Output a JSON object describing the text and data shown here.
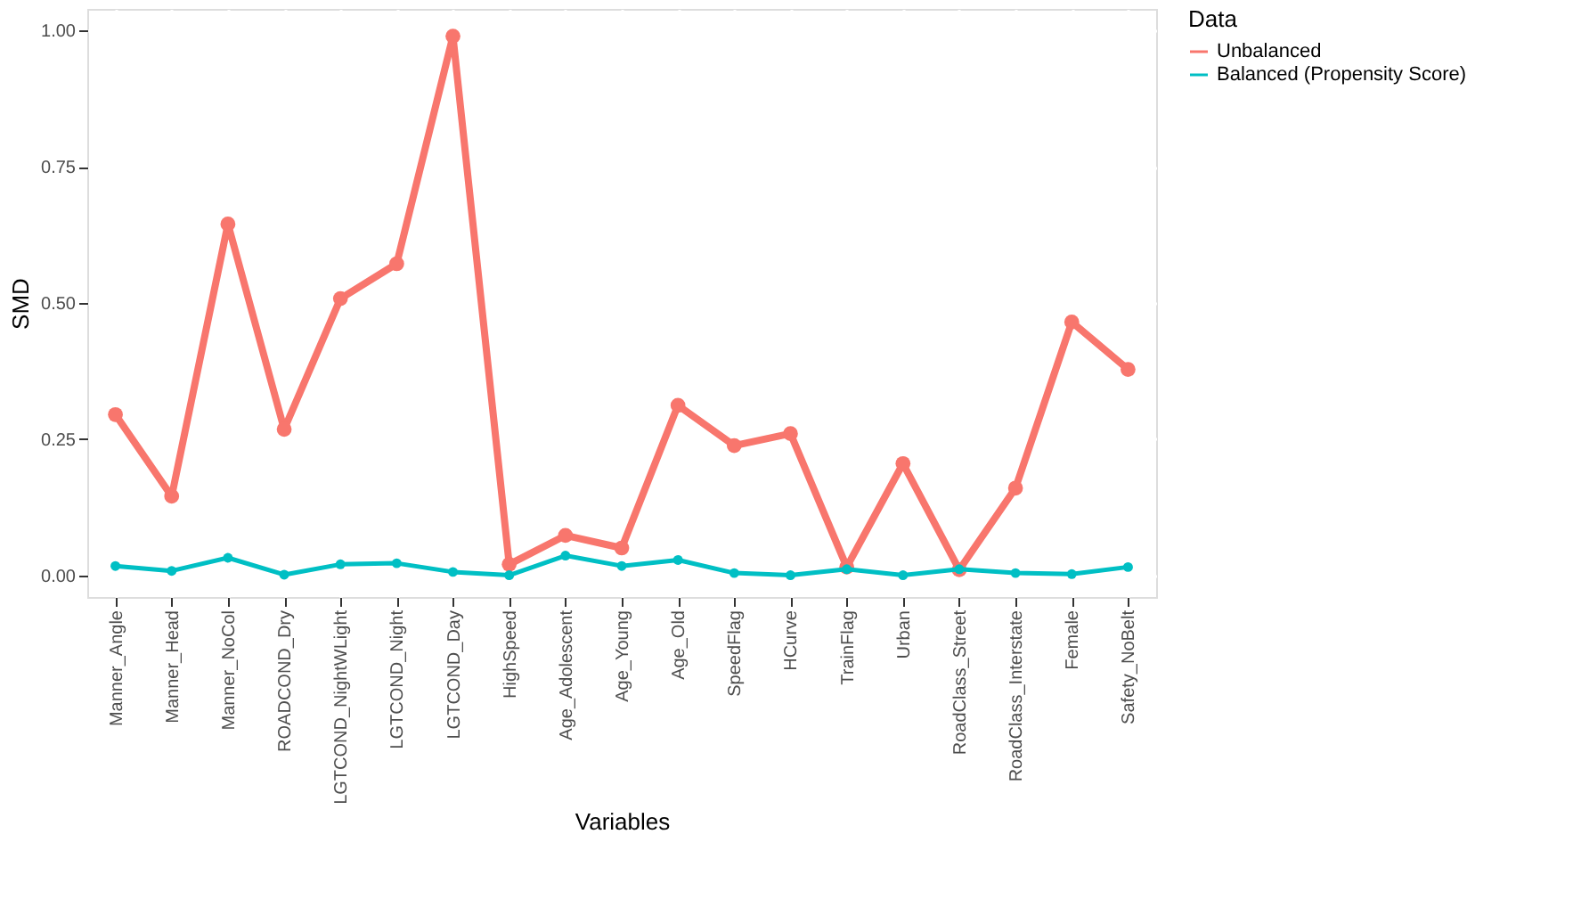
{
  "chart_data": {
    "type": "line",
    "xlabel": "Variables",
    "ylabel": "SMD",
    "legend_title": "Data",
    "categories": [
      "Manner_Angle",
      "Manner_Head",
      "Manner_NoCol",
      "ROADCOND_Dry",
      "LGTCOND_NightWLight",
      "LGTCOND_Night",
      "LGTCOND_Day",
      "HighSpeed",
      "Age_Adolescent",
      "Age_Young",
      "Age_Old",
      "SpeedFlag",
      "HCurve",
      "TrainFlag",
      "Urban",
      "RoadClass_Street",
      "RoadClass_Interstate",
      "Female",
      "Safety_NoBelt"
    ],
    "series": [
      {
        "name": "Unbalanced",
        "color": "#f8766d",
        "values": [
          0.295,
          0.145,
          0.645,
          0.268,
          0.508,
          0.572,
          0.99,
          0.02,
          0.073,
          0.05,
          0.312,
          0.238,
          0.26,
          0.015,
          0.205,
          0.01,
          0.16,
          0.465,
          0.378
        ]
      },
      {
        "name": "Balanced (Propensity Score)",
        "color": "#00bfc4",
        "values": [
          0.017,
          0.008,
          0.032,
          0.001,
          0.02,
          0.022,
          0.006,
          0.0,
          0.036,
          0.017,
          0.028,
          0.004,
          0.0,
          0.011,
          0.0,
          0.011,
          0.004,
          0.002,
          0.015
        ]
      }
    ],
    "ylim": [
      -0.04,
      1.04
    ],
    "yticks": [
      {
        "value": 0,
        "label": "0.00"
      },
      {
        "value": 0.25,
        "label": "0.25"
      },
      {
        "value": 0.5,
        "label": "0.50"
      },
      {
        "value": 0.75,
        "label": "0.75"
      },
      {
        "value": 1,
        "label": "1.00"
      }
    ],
    "grid": true,
    "legend": "right",
    "marker": "circle",
    "line_style": "solid"
  }
}
